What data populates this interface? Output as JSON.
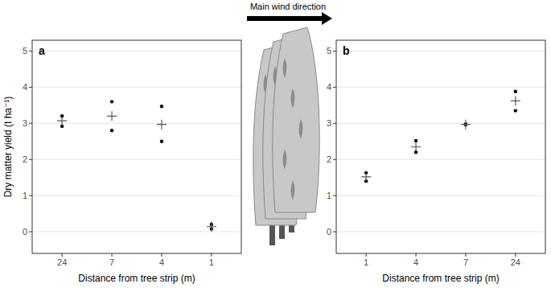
{
  "annotation": "Main wind direction",
  "chart_data": [
    {
      "type": "scatter",
      "title": "a",
      "y_label": "Dry matter yield (t ha⁻¹)",
      "x_label": "Distance from tree strip (m)",
      "categories": [
        "24",
        "7",
        "4",
        "1"
      ],
      "series": [
        {
          "values": [
            3.2,
            3.6,
            3.47,
            0.2
          ],
          "color": "#000000",
          "marker": "dot"
        },
        {
          "values": [
            2.92,
            2.8,
            2.5,
            0.08
          ],
          "color": "#000000",
          "marker": "dot"
        },
        {
          "values": [
            3.07,
            3.2,
            2.97,
            0.14
          ],
          "color": "#555555",
          "marker": "cross"
        }
      ],
      "ylim": [
        -0.6,
        5.3
      ],
      "yticks": [
        0,
        1,
        2,
        3,
        4,
        5
      ],
      "grid": true
    },
    {
      "type": "scatter",
      "title": "b",
      "x_label": "Distance from tree strip (m)",
      "categories": [
        "1",
        "4",
        "7",
        "24"
      ],
      "series": [
        {
          "values": [
            1.63,
            2.52,
            2.98,
            3.88
          ],
          "color": "#000000",
          "marker": "dot"
        },
        {
          "values": [
            1.4,
            2.2,
            2.96,
            3.35
          ],
          "color": "#000000",
          "marker": "dot"
        },
        {
          "values": [
            1.52,
            2.35,
            2.97,
            3.62
          ],
          "color": "#555555",
          "marker": "cross"
        }
      ],
      "ylim": [
        -0.6,
        5.3
      ],
      "yticks": [
        0,
        1,
        2,
        3,
        4,
        5
      ],
      "grid": true
    }
  ]
}
